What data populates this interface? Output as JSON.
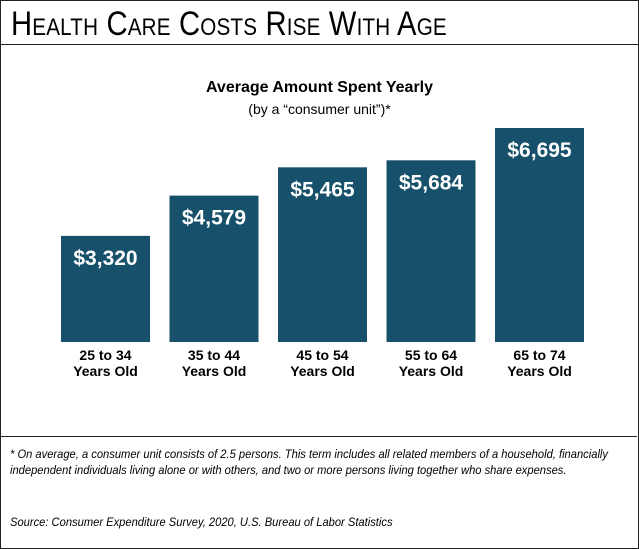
{
  "title": "Health Care Costs Rise With Age",
  "chart_data": {
    "type": "bar",
    "title": "Average Amount Spent Yearly",
    "subtitle": "(by a “consumer unit”)*",
    "categories": [
      "25 to 34 Years Old",
      "35 to 44 Years Old",
      "45 to 54 Years Old",
      "55 to 64 Years Old",
      "65 to 74 Years Old"
    ],
    "category_lines": [
      [
        "25 to 34",
        "Years Old"
      ],
      [
        "35 to 44",
        "Years Old"
      ],
      [
        "45 to 54",
        "Years Old"
      ],
      [
        "55 to 64",
        "Years Old"
      ],
      [
        "65 to 74",
        "Years Old"
      ]
    ],
    "values": [
      3320,
      4579,
      5465,
      5684,
      6695
    ],
    "value_labels": [
      "$3,320",
      "$4,579",
      "$5,465",
      "$5,684",
      "$6,695"
    ],
    "xlabel": "",
    "ylabel": "",
    "ylim": [
      0,
      6695
    ],
    "grid": false,
    "bar_color": "#17506b"
  },
  "footnote": "* On average, a consumer unit consists of 2.5 persons. This term includes all related members of a household, financially independent individuals living alone or with others, and two or more persons living together who share expenses.",
  "source": "Source: Consumer Expenditure Survey, 2020, U.S. Bureau of Labor Statistics"
}
